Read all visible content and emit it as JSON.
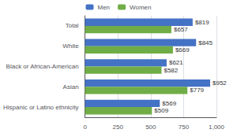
{
  "chart_data": {
    "type": "bar",
    "orientation": "horizontal",
    "categories": [
      "Total",
      "White",
      "Black or African-American",
      "Asian",
      "Hispanic or Latino ethnicity"
    ],
    "series": [
      {
        "name": "Men",
        "color": "#4472C4",
        "values": [
          819,
          845,
          621,
          952,
          569
        ],
        "value_labels": [
          "$819",
          "$845",
          "$621",
          "$952",
          "$569"
        ]
      },
      {
        "name": "Women",
        "color": "#70AD47",
        "values": [
          657,
          669,
          582,
          779,
          509
        ],
        "value_labels": [
          "$657",
          "$669",
          "$582",
          "$779",
          "$509"
        ]
      }
    ],
    "xlim": [
      0,
      1000
    ],
    "xticks": [
      0,
      250,
      500,
      750,
      {
        "value": 1000,
        "label": "1,000"
      }
    ],
    "grid": true,
    "legend": "top",
    "data_labels": true
  }
}
